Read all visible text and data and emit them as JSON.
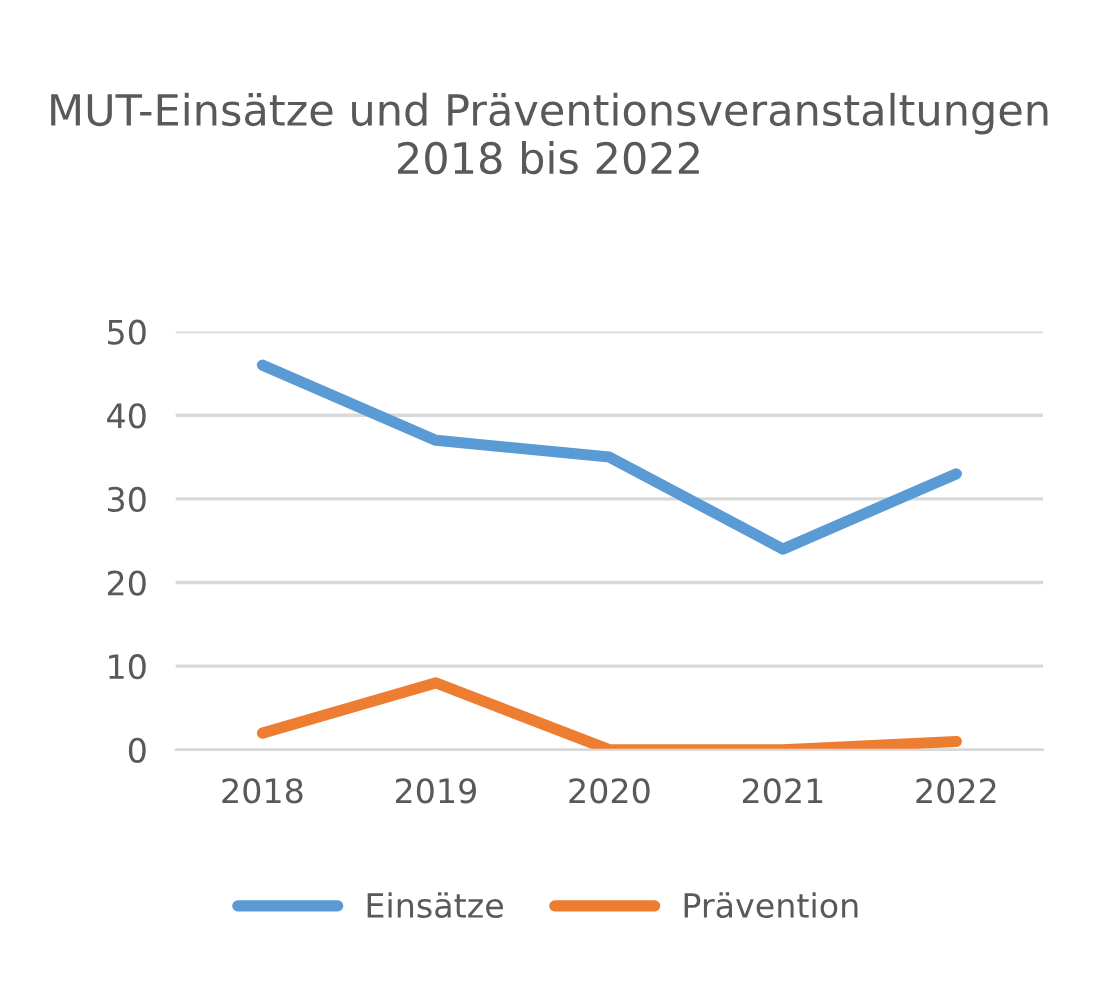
{
  "chart_data": {
    "type": "line",
    "title": "MUT-Einsätze und Präventionsveranstaltungen 2018 bis 2022",
    "categories": [
      "2018",
      "2019",
      "2020",
      "2021",
      "2022"
    ],
    "series": [
      {
        "name": "Einsätze",
        "color": "#5b9bd5",
        "values": [
          46,
          37,
          35,
          24,
          33
        ]
      },
      {
        "name": "Prävention",
        "color": "#ed7d31",
        "values": [
          2,
          8,
          0,
          0,
          1
        ]
      }
    ],
    "ylim": [
      0,
      50
    ],
    "yticks": [
      0,
      10,
      20,
      30,
      40,
      50
    ],
    "grid": "y",
    "legend": "bottom",
    "marker": "none",
    "line_style": "solid"
  }
}
